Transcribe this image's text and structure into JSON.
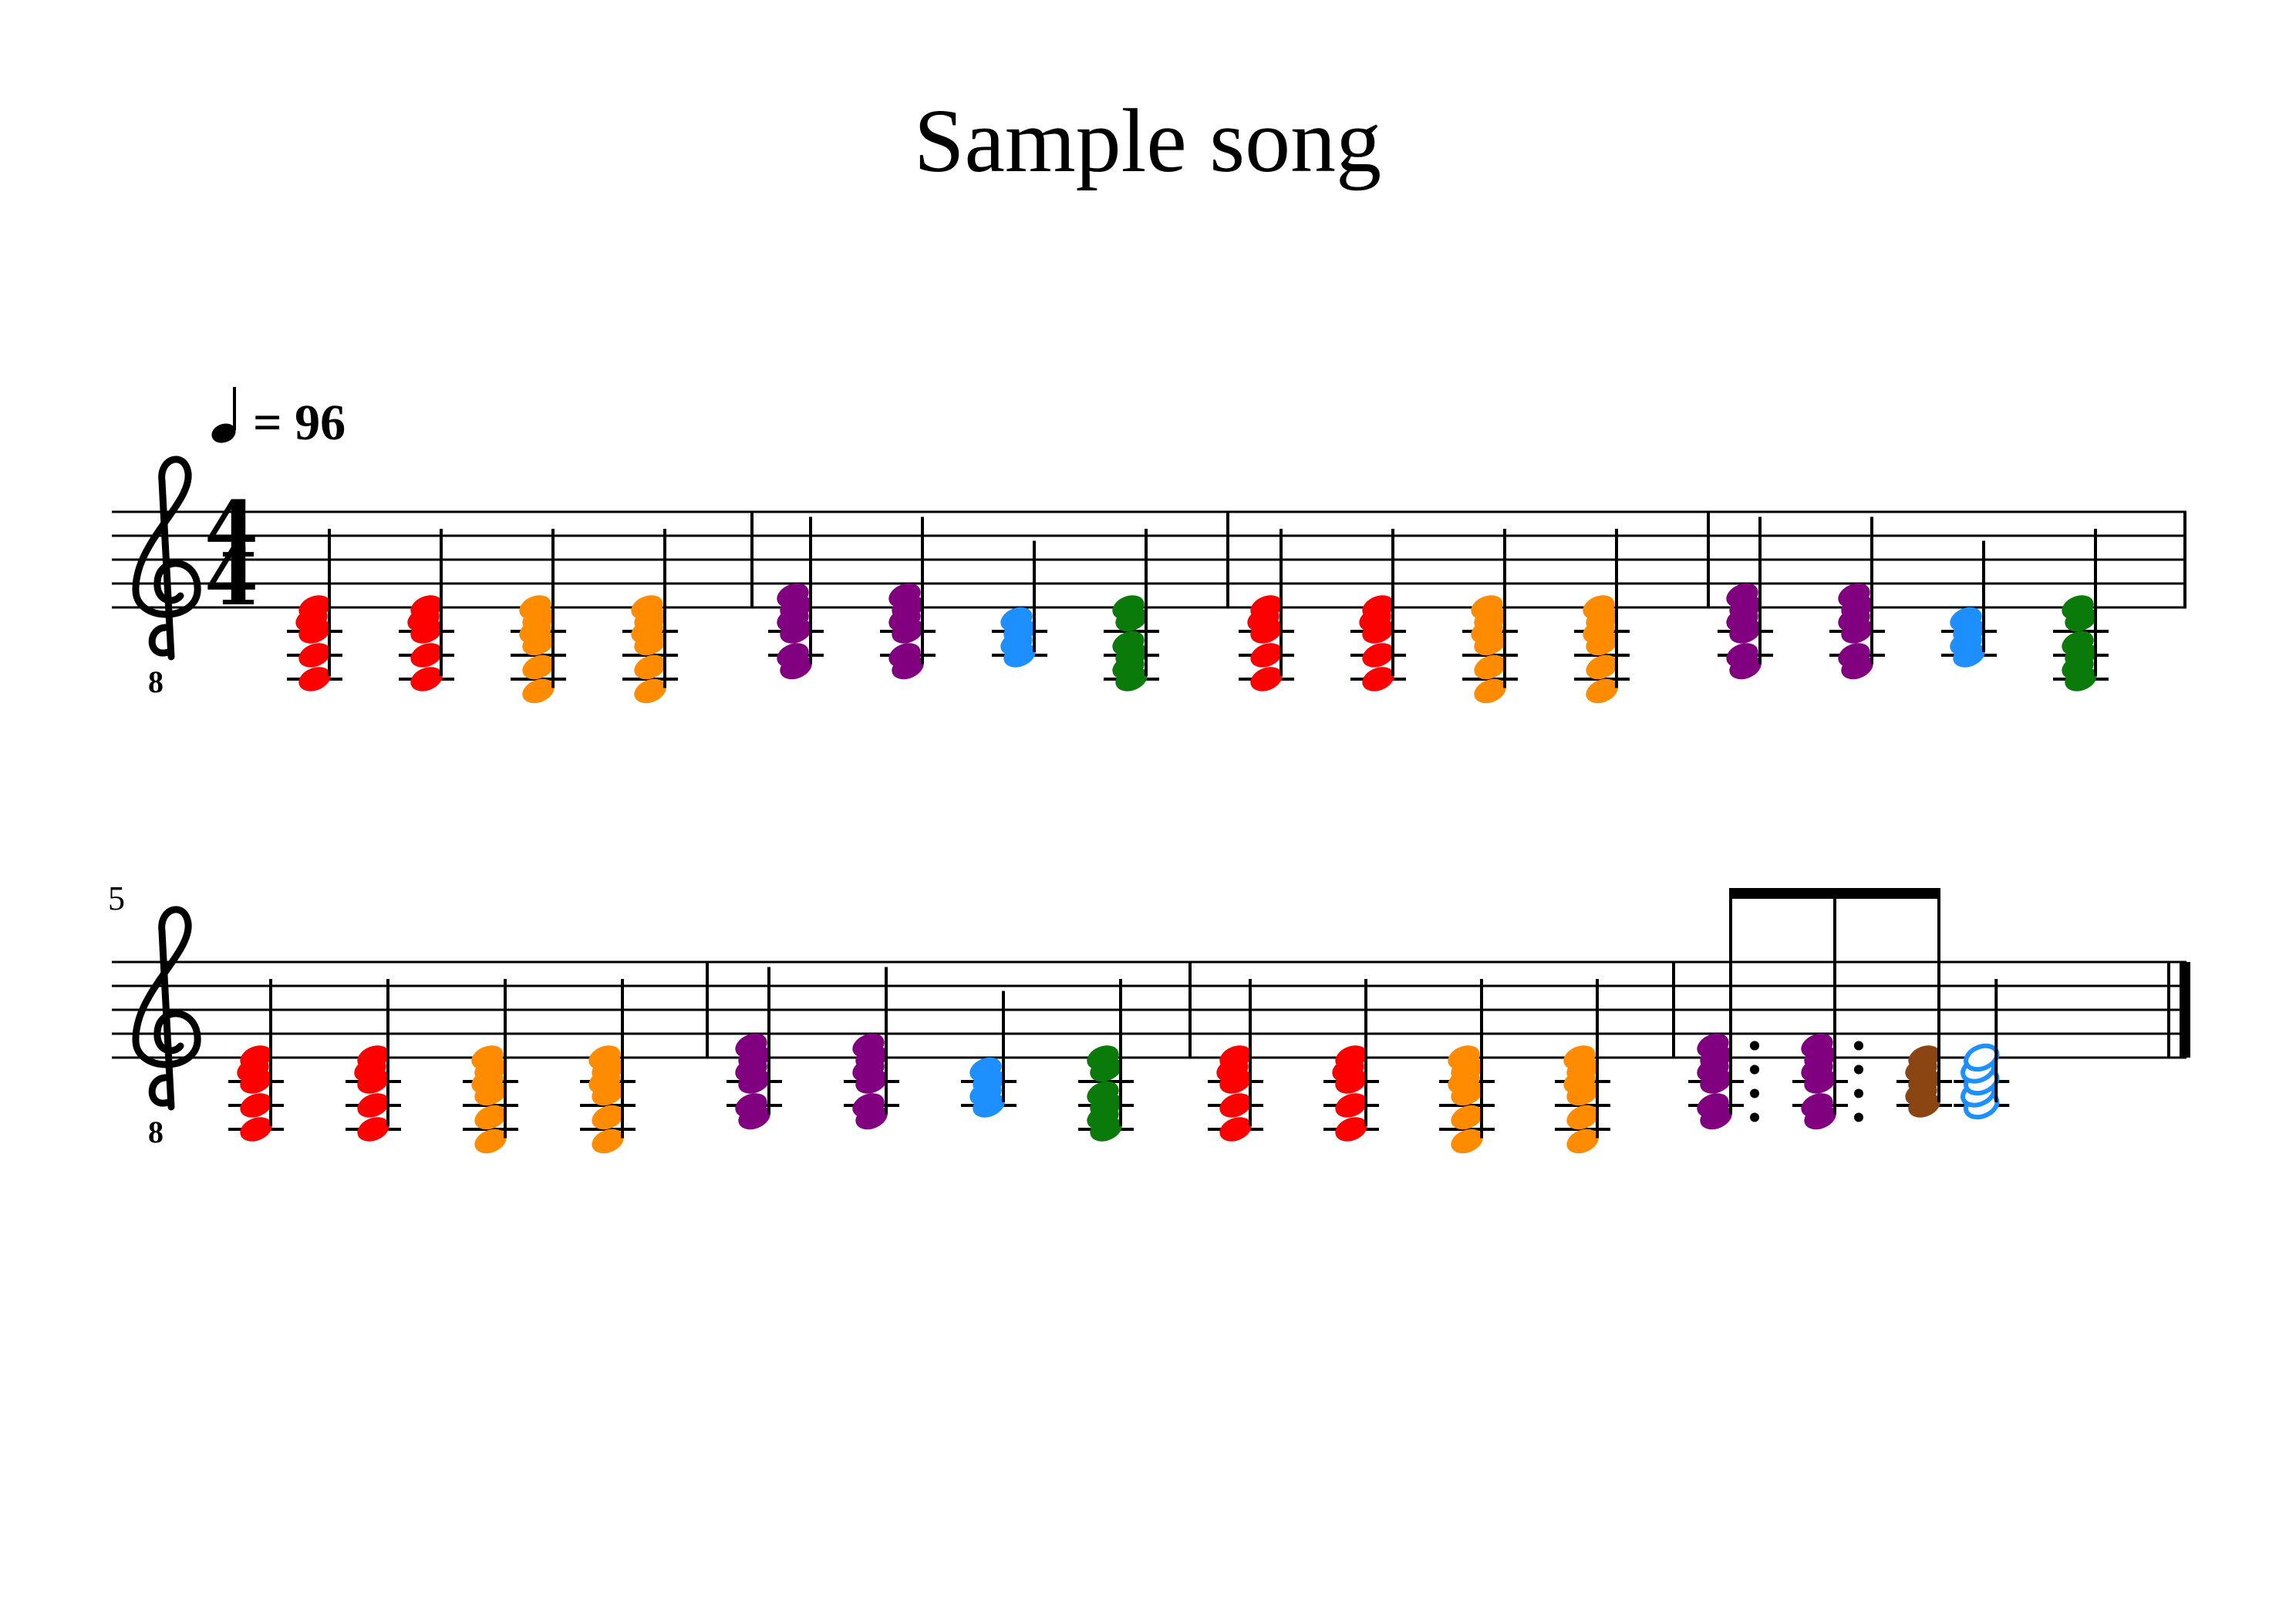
{
  "title": "Sample song",
  "tempo": {
    "beat_unit": "quarter",
    "bpm_text": "= 96"
  },
  "time_signature": {
    "numerator": "4",
    "denominator": "4"
  },
  "clef": {
    "type": "treble-8vb",
    "octave_mark": "8"
  },
  "colors": {
    "C": "#ff0000",
    "G": "#ff8c00",
    "Am": "#800080",
    "F": "#1e8fff",
    "Em": "#0a7a0a",
    "D": "#8b4513",
    "ink": "#000000"
  },
  "chord_shapes": {
    "C": [
      -6,
      -4,
      -2,
      -1,
      0
    ],
    "G": [
      -7,
      -5,
      -3,
      -2,
      -1,
      0
    ],
    "Am": [
      -5,
      -4,
      -2,
      -1,
      0,
      1
    ],
    "F": [
      -4,
      -3,
      -2,
      -1
    ],
    "Em": [
      -6,
      -5,
      -4,
      -3,
      -1,
      0
    ],
    "D": [
      -4,
      -3,
      -2,
      -1,
      0
    ],
    "F-half": [
      -4,
      -3,
      -2,
      -1,
      0
    ]
  },
  "systems": [
    {
      "measure_number": "",
      "measures": [
        [
          {
            "chord": "C",
            "dur": "q"
          },
          {
            "chord": "C",
            "dur": "q"
          },
          {
            "chord": "G",
            "dur": "q"
          },
          {
            "chord": "G",
            "dur": "q"
          }
        ],
        [
          {
            "chord": "Am",
            "dur": "q"
          },
          {
            "chord": "Am",
            "dur": "q"
          },
          {
            "chord": "F",
            "dur": "q"
          },
          {
            "chord": "Em",
            "dur": "q"
          }
        ],
        [
          {
            "chord": "C",
            "dur": "q"
          },
          {
            "chord": "C",
            "dur": "q"
          },
          {
            "chord": "G",
            "dur": "q"
          },
          {
            "chord": "G",
            "dur": "q"
          }
        ],
        [
          {
            "chord": "Am",
            "dur": "q"
          },
          {
            "chord": "Am",
            "dur": "q"
          },
          {
            "chord": "F",
            "dur": "q"
          },
          {
            "chord": "Em",
            "dur": "q"
          }
        ]
      ],
      "final_barline": false
    },
    {
      "measure_number": "5",
      "measures": [
        [
          {
            "chord": "C",
            "dur": "q"
          },
          {
            "chord": "C",
            "dur": "q"
          },
          {
            "chord": "G",
            "dur": "q"
          },
          {
            "chord": "G",
            "dur": "q"
          }
        ],
        [
          {
            "chord": "Am",
            "dur": "q"
          },
          {
            "chord": "Am",
            "dur": "q"
          },
          {
            "chord": "F",
            "dur": "q"
          },
          {
            "chord": "Em",
            "dur": "q"
          }
        ],
        [
          {
            "chord": "C",
            "dur": "q"
          },
          {
            "chord": "C",
            "dur": "q"
          },
          {
            "chord": "G",
            "dur": "q"
          },
          {
            "chord": "G",
            "dur": "q"
          }
        ],
        [
          {
            "chord": "Am",
            "dur": "8."
          },
          {
            "chord": "Am",
            "dur": "8."
          },
          {
            "chord": "D",
            "dur": "8"
          },
          {
            "chord": "F-half",
            "dur": "h"
          }
        ]
      ],
      "final_barline": true
    }
  ]
}
